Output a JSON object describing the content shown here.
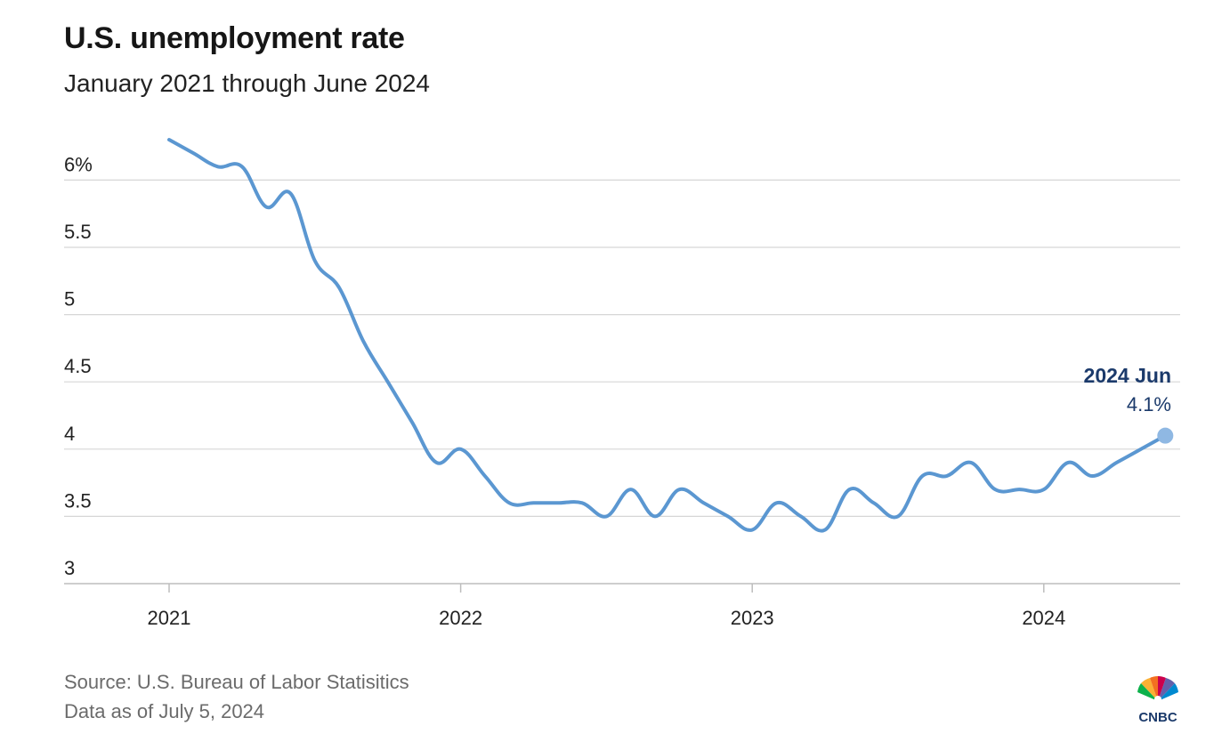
{
  "header": {
    "title": "U.S. unemployment rate",
    "subtitle": "January 2021 through June 2024"
  },
  "footer": {
    "source": "Source: U.S. Bureau of Labor Statisitics",
    "as_of": "Data as of July 5, 2024"
  },
  "logo": {
    "text": "CNBC",
    "icon": "peacock-icon"
  },
  "colors": {
    "line": "#5b97d1",
    "grid": "#d6d6d6",
    "callout": "#1b3a6b",
    "marker": "#8fb8e3"
  },
  "chart_data": {
    "type": "line",
    "title": "U.S. unemployment rate",
    "subtitle": "January 2021 through June 2024",
    "xlabel": "",
    "ylabel": "",
    "ylim": [
      3,
      6.3
    ],
    "y_ticks": [
      "6%",
      "5.5",
      "5",
      "4.5",
      "4",
      "3.5",
      "3"
    ],
    "y_tick_values": [
      6,
      5.5,
      5,
      4.5,
      4,
      3.5,
      3
    ],
    "x_ticks": [
      "2021",
      "2022",
      "2023",
      "2024"
    ],
    "grid": true,
    "x": [
      "2021 Jan",
      "2021 Feb",
      "2021 Mar",
      "2021 Apr",
      "2021 May",
      "2021 Jun",
      "2021 Jul",
      "2021 Aug",
      "2021 Sep",
      "2021 Oct",
      "2021 Nov",
      "2021 Dec",
      "2022 Jan",
      "2022 Feb",
      "2022 Mar",
      "2022 Apr",
      "2022 May",
      "2022 Jun",
      "2022 Jul",
      "2022 Aug",
      "2022 Sep",
      "2022 Oct",
      "2022 Nov",
      "2022 Dec",
      "2023 Jan",
      "2023 Feb",
      "2023 Mar",
      "2023 Apr",
      "2023 May",
      "2023 Jun",
      "2023 Jul",
      "2023 Aug",
      "2023 Sep",
      "2023 Oct",
      "2023 Nov",
      "2023 Dec",
      "2024 Jan",
      "2024 Feb",
      "2024 Mar",
      "2024 Apr",
      "2024 May",
      "2024 Jun"
    ],
    "series": [
      {
        "values": [
          6.3,
          6.2,
          6.1,
          6.1,
          5.8,
          5.9,
          5.4,
          5.2,
          4.8,
          4.5,
          4.2,
          3.9,
          4.0,
          3.8,
          3.6,
          3.6,
          3.6,
          3.6,
          3.5,
          3.7,
          3.5,
          3.7,
          3.6,
          3.5,
          3.4,
          3.6,
          3.5,
          3.4,
          3.7,
          3.6,
          3.5,
          3.8,
          3.8,
          3.9,
          3.7,
          3.7,
          3.7,
          3.9,
          3.8,
          3.9,
          4.0,
          4.1
        ]
      }
    ],
    "annotation": {
      "label": "2024 Jun",
      "value": "4.1%"
    }
  }
}
